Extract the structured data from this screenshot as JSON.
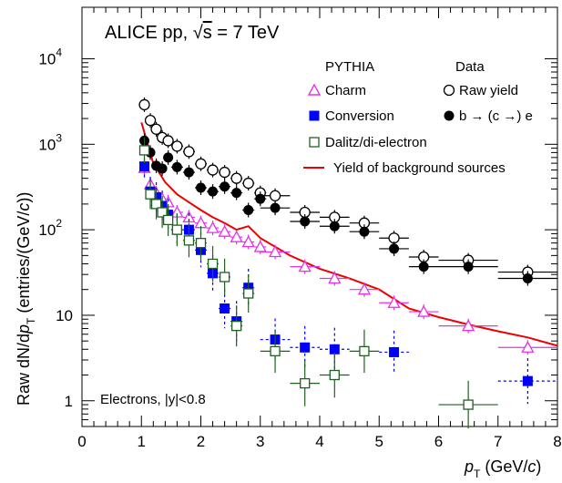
{
  "chart_data": {
    "type": "scatter",
    "title": "ALICE pp, √s = 7 TeV",
    "title_parts": {
      "prefix": "ALICE pp, ",
      "sqrt": "√",
      "s": "s",
      "suffix": " = 7 TeV"
    },
    "annotation": "Electrons, |y|<0.8",
    "xlabel": {
      "main": "p",
      "sub": "T",
      "unit": " (GeV/",
      "c": "c",
      "close": ")"
    },
    "ylabel": {
      "raw": "Raw dN/d",
      "p": "p",
      "sub": "T",
      "unit": " (entries/(GeV/",
      "c": "c",
      "close": "))"
    },
    "xlim": [
      0,
      8
    ],
    "ylim": [
      0.5,
      40000
    ],
    "yscale": "log",
    "xticks": [
      "0",
      "1",
      "2",
      "3",
      "4",
      "5",
      "6",
      "7",
      "8"
    ],
    "yticks": [
      {
        "value": 1,
        "label": "1",
        "sup": ""
      },
      {
        "value": 10,
        "label": "10",
        "sup": ""
      },
      {
        "value": 100,
        "label": "10",
        "sup": "2"
      },
      {
        "value": 1000,
        "label": "10",
        "sup": "3"
      },
      {
        "value": 10000,
        "label": "10",
        "sup": "4"
      }
    ],
    "legend": {
      "pythia_header": "PYTHIA",
      "data_header": "Data",
      "charm": "Charm",
      "conversion": "Conversion",
      "dalitz": "Dalitz/di-electron",
      "raw_yield": "Raw yield",
      "beauty": "b → (c →) e",
      "background": "Yield of background sources"
    },
    "colors": {
      "charm": "#e830e8",
      "conversion": "#0000ff",
      "dalitz": "#206020",
      "raw": "#000000",
      "beauty": "#000000",
      "background": "#ee0000"
    },
    "series": [
      {
        "name": "Raw yield",
        "marker": "open-circle",
        "x": [
          1.05,
          1.15,
          1.25,
          1.35,
          1.45,
          1.6,
          1.8,
          2.0,
          2.2,
          2.4,
          2.6,
          2.8,
          3.0,
          3.25,
          3.75,
          4.25,
          4.75,
          5.25,
          5.75,
          6.5,
          7.5
        ],
        "xerr": [
          0.05,
          0.05,
          0.05,
          0.05,
          0.05,
          0.1,
          0.1,
          0.1,
          0.1,
          0.1,
          0.1,
          0.1,
          0.1,
          0.25,
          0.25,
          0.25,
          0.25,
          0.25,
          0.25,
          0.5,
          0.5
        ],
        "y": [
          2900,
          1900,
          1500,
          1200,
          1100,
          950,
          820,
          590,
          500,
          470,
          400,
          350,
          270,
          250,
          160,
          140,
          120,
          80,
          48,
          44,
          32
        ]
      },
      {
        "name": "b → (c →) e",
        "marker": "filled-circle",
        "x": [
          1.05,
          1.15,
          1.25,
          1.35,
          1.45,
          1.6,
          1.8,
          2.0,
          2.2,
          2.4,
          2.6,
          2.8,
          3.0,
          3.25,
          3.75,
          4.25,
          4.75,
          5.25,
          5.75,
          6.5,
          7.5
        ],
        "xerr": [
          0.05,
          0.05,
          0.05,
          0.05,
          0.05,
          0.1,
          0.1,
          0.1,
          0.1,
          0.1,
          0.1,
          0.1,
          0.1,
          0.25,
          0.25,
          0.25,
          0.25,
          0.25,
          0.25,
          0.5,
          0.5
        ],
        "y": [
          1100,
          800,
          560,
          520,
          700,
          540,
          470,
          310,
          280,
          320,
          270,
          170,
          230,
          180,
          125,
          110,
          95,
          60,
          37,
          37,
          27
        ]
      },
      {
        "name": "Charm",
        "marker": "open-triangle",
        "x": [
          1.05,
          1.15,
          1.25,
          1.35,
          1.45,
          1.6,
          1.8,
          2.0,
          2.2,
          2.4,
          2.6,
          2.8,
          3.0,
          3.25,
          3.75,
          4.25,
          4.75,
          5.25,
          5.75,
          6.5,
          7.5
        ],
        "xerr": [
          0.05,
          0.05,
          0.05,
          0.05,
          0.05,
          0.1,
          0.1,
          0.1,
          0.1,
          0.1,
          0.1,
          0.1,
          0.1,
          0.25,
          0.25,
          0.25,
          0.25,
          0.25,
          0.25,
          0.5,
          0.5
        ],
        "y": [
          530,
          340,
          270,
          230,
          210,
          160,
          140,
          120,
          105,
          95,
          82,
          72,
          63,
          55,
          37,
          27,
          20,
          14,
          11,
          7.5,
          4.2
        ]
      },
      {
        "name": "Conversion",
        "marker": "filled-square",
        "x": [
          1.05,
          1.15,
          1.25,
          1.35,
          1.45,
          1.6,
          1.8,
          2.0,
          2.2,
          2.4,
          2.6,
          2.8,
          3.25,
          3.75,
          4.25,
          5.25,
          7.5
        ],
        "xerr": [
          0.05,
          0.05,
          0.05,
          0.05,
          0.05,
          0.1,
          0.1,
          0.1,
          0.1,
          0.1,
          0.1,
          0.1,
          0.25,
          0.25,
          0.25,
          0.25,
          0.5
        ],
        "y": [
          550,
          280,
          240,
          190,
          150,
          100,
          100,
          58,
          31,
          12,
          8.5,
          21,
          5.2,
          4.2,
          4.0,
          3.7,
          1.7
        ]
      },
      {
        "name": "Dalitz/di-electron",
        "marker": "open-square",
        "x": [
          1.05,
          1.15,
          1.25,
          1.35,
          1.45,
          1.6,
          1.8,
          2.0,
          2.2,
          2.4,
          2.6,
          2.8,
          3.25,
          3.75,
          4.25,
          4.75,
          6.5
        ],
        "xerr": [
          0.05,
          0.05,
          0.05,
          0.05,
          0.05,
          0.1,
          0.1,
          0.1,
          0.1,
          0.1,
          0.1,
          0.1,
          0.25,
          0.25,
          0.25,
          0.25,
          0.5
        ],
        "y": [
          850,
          260,
          200,
          160,
          130,
          100,
          75,
          70,
          40,
          28,
          7.5,
          18,
          3.8,
          1.6,
          2.0,
          3.8,
          0.9
        ]
      },
      {
        "name": "Yield of background sources",
        "marker": "line",
        "x": [
          1.0,
          1.2,
          1.4,
          1.6,
          1.8,
          2.0,
          2.2,
          2.4,
          2.6,
          2.8,
          3.0,
          3.5,
          4.0,
          4.5,
          5.0,
          5.5,
          6.0,
          6.5,
          7.0,
          7.5,
          8.0
        ],
        "y": [
          1800,
          600,
          360,
          260,
          210,
          170,
          140,
          120,
          100,
          110,
          80,
          50,
          35,
          27,
          20,
          12,
          9.5,
          7.8,
          6.5,
          5.5,
          4.4
        ]
      }
    ]
  }
}
